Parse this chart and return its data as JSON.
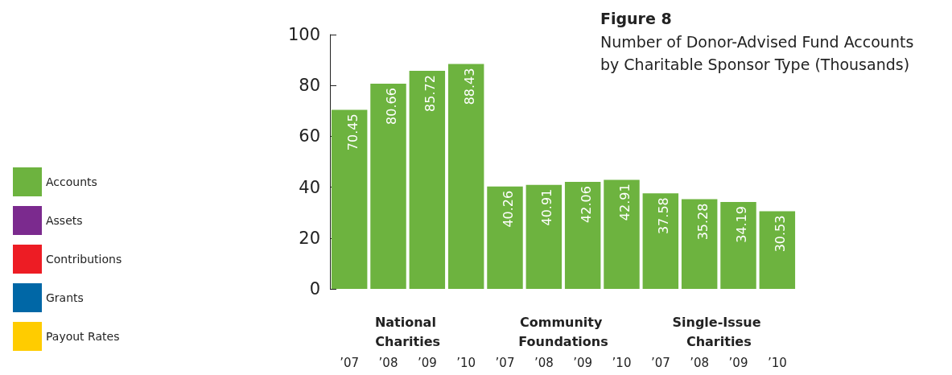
{
  "chart_data": [
    {
      "type": "bar",
      "title": "Figure 8",
      "subtitle": "Number of Donor-Advised Fund Accounts by Charitable Sponsor Type (Thousands)",
      "categories": [
        "’07",
        "’08",
        "’09",
        "’10",
        "’07",
        "’08",
        "’09",
        "’10",
        "’07",
        "’08",
        "’09",
        "’10"
      ],
      "series": [
        {
          "name": "Accounts",
          "color": "#6db33f",
          "values": [
            70.45,
            80.66,
            85.72,
            88.43,
            40.26,
            40.91,
            42.06,
            42.91,
            37.58,
            35.28,
            34.19,
            30.53
          ]
        }
      ],
      "annotations": [
        "National Charities",
        "Community Foundations",
        "Single-Issue Charities"
      ],
      "ylim": [
        0,
        100
      ],
      "yticks": [
        0,
        20,
        40,
        60,
        80,
        100
      ],
      "grid": false,
      "legend": "left",
      "data_labels": true
    },
    {
      "type": "other",
      "categories": [
        "Assets",
        "Contributions",
        "Grants",
        "Payout Rates"
      ],
      "colors": [
        "#7b2a8e",
        "#ed1c24",
        "#0067a6",
        "#ffcc00"
      ]
    }
  ]
}
